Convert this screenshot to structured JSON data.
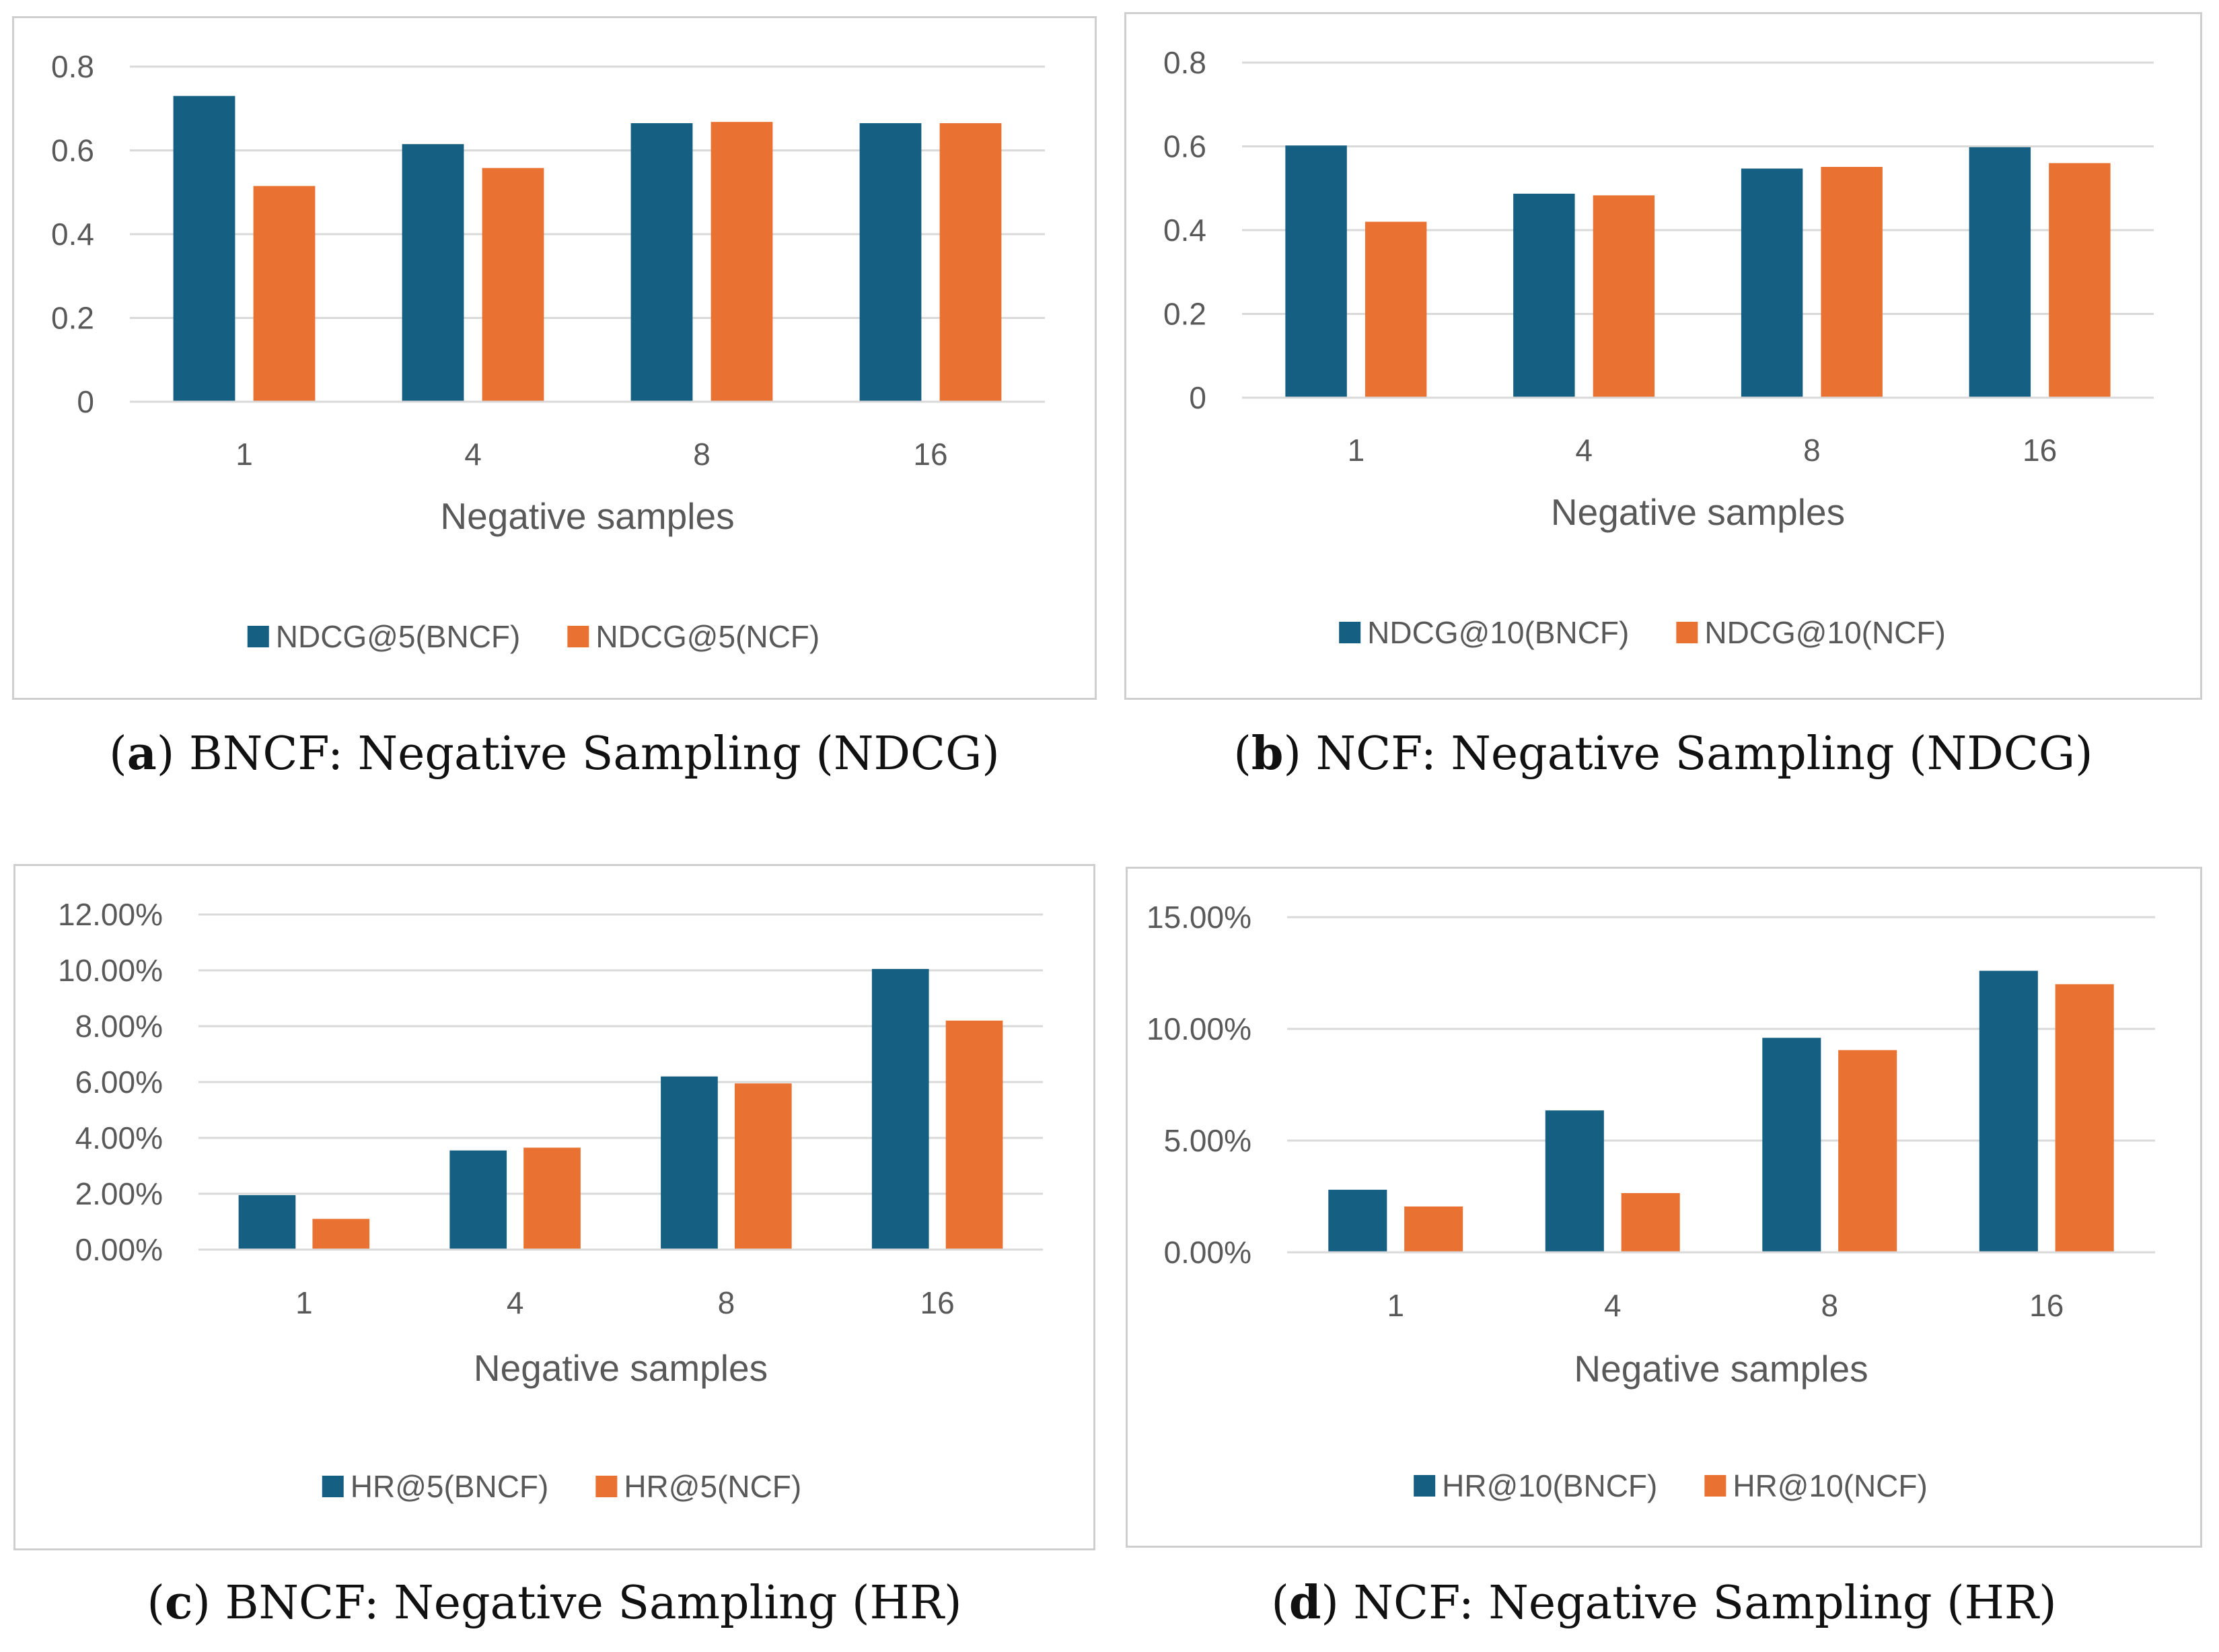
{
  "colors": {
    "series1": "#156082",
    "series2": "#E97132",
    "grid": "#d9d9d9",
    "text": "#595959"
  },
  "chart_data": [
    {
      "type": "bar",
      "categories": [
        "1",
        "4",
        "8",
        "16"
      ],
      "series": [
        {
          "name": "NDCG@5(BNCF)",
          "values": [
            0.73,
            0.615,
            0.665,
            0.665
          ]
        },
        {
          "name": "NDCG@5(NCF)",
          "values": [
            0.515,
            0.558,
            0.668,
            0.665
          ]
        }
      ],
      "ylim": [
        0,
        0.8
      ],
      "yticks": [
        0,
        0.2,
        0.4,
        0.6,
        0.8
      ],
      "ytick_labels": [
        "0",
        "0.2",
        "0.4",
        "0.6",
        "0.8"
      ],
      "xlabel": "Negative samples",
      "ylabel": "",
      "legend": "bottom",
      "grid": true,
      "caption_letter": "a",
      "caption_text": " BNCF: Negative Sampling (NDCG)"
    },
    {
      "type": "bar",
      "categories": [
        "1",
        "4",
        "8",
        "16"
      ],
      "series": [
        {
          "name": "NDCG@10(BNCF)",
          "values": [
            0.602,
            0.487,
            0.547,
            0.598
          ]
        },
        {
          "name": "NDCG@10(NCF)",
          "values": [
            0.42,
            0.483,
            0.551,
            0.56
          ]
        }
      ],
      "ylim": [
        0,
        0.8
      ],
      "yticks": [
        0,
        0.2,
        0.4,
        0.6,
        0.8
      ],
      "ytick_labels": [
        "0",
        "0.2",
        "0.4",
        "0.6",
        "0.8"
      ],
      "xlabel": "Negative samples",
      "ylabel": "",
      "legend": "bottom",
      "grid": true,
      "caption_letter": "b",
      "caption_text": " NCF: Negative Sampling (NDCG)"
    },
    {
      "type": "bar",
      "categories": [
        "1",
        "4",
        "8",
        "16"
      ],
      "series": [
        {
          "name": "HR@5(BNCF)",
          "values": [
            1.95,
            3.55,
            6.2,
            10.05
          ]
        },
        {
          "name": "HR@5(NCF)",
          "values": [
            1.1,
            3.65,
            5.95,
            8.2
          ]
        }
      ],
      "ylim": [
        0,
        12
      ],
      "yticks": [
        0,
        2,
        4,
        6,
        8,
        10,
        12
      ],
      "ytick_labels": [
        "0.00%",
        "2.00%",
        "4.00%",
        "6.00%",
        "8.00%",
        "10.00%",
        "12.00%"
      ],
      "xlabel": "Negative samples",
      "ylabel": "",
      "legend": "bottom",
      "grid": true,
      "caption_letter": "c",
      "caption_text": " BNCF: Negative Sampling (HR)"
    },
    {
      "type": "bar",
      "categories": [
        "1",
        "4",
        "8",
        "16"
      ],
      "series": [
        {
          "name": "HR@10(BNCF)",
          "values": [
            2.8,
            6.35,
            9.6,
            12.6
          ]
        },
        {
          "name": "HR@10(NCF)",
          "values": [
            2.05,
            2.65,
            9.05,
            12.0
          ]
        }
      ],
      "ylim": [
        0,
        15
      ],
      "yticks": [
        0,
        5,
        10,
        15
      ],
      "ytick_labels": [
        "0.00%",
        "5.00%",
        "10.00%",
        "15.00%"
      ],
      "xlabel": "Negative samples",
      "ylabel": "",
      "legend": "bottom",
      "grid": true,
      "caption_letter": "d",
      "caption_text": " NCF: Negative Sampling (HR)"
    }
  ]
}
